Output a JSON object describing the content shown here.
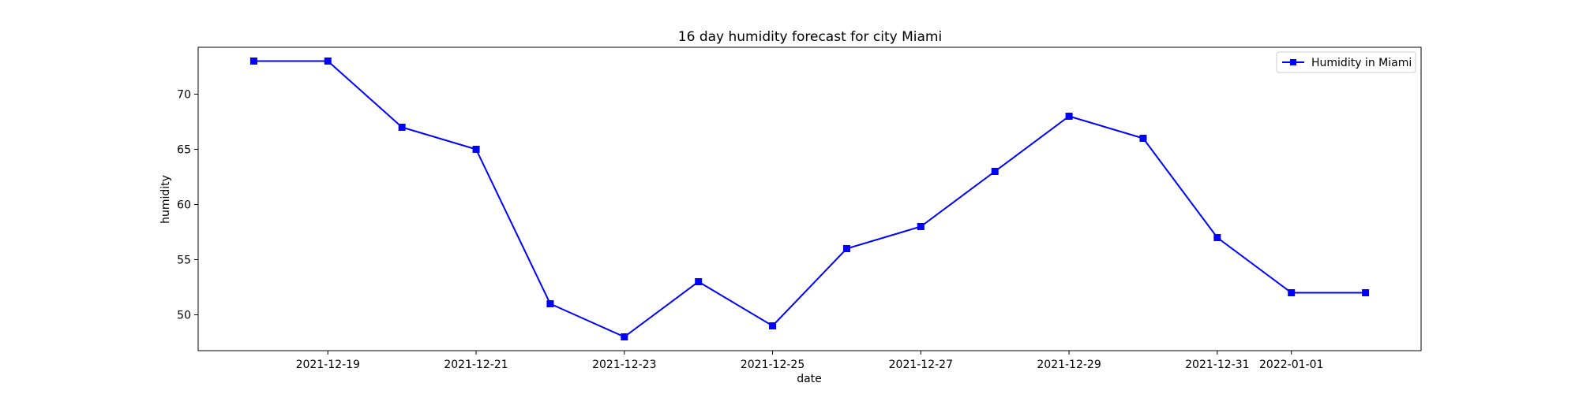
{
  "chart_data": {
    "type": "line",
    "title": "16 day humidity forecast for city Miami",
    "xlabel": "date",
    "ylabel": "humidity",
    "x": [
      "2021-12-18",
      "2021-12-19",
      "2021-12-20",
      "2021-12-21",
      "2021-12-22",
      "2021-12-23",
      "2021-12-24",
      "2021-12-25",
      "2021-12-26",
      "2021-12-27",
      "2021-12-28",
      "2021-12-29",
      "2021-12-30",
      "2021-12-31",
      "2022-01-01",
      "2022-01-02"
    ],
    "series": [
      {
        "name": "Humidity in Miami",
        "color": "#0000ff",
        "marker": "square",
        "values": [
          73,
          73,
          67,
          65,
          51,
          48,
          53,
          49,
          56,
          58,
          63,
          68,
          66,
          57,
          52,
          52
        ]
      }
    ],
    "xlim": [
      "2021-12-17T06:00",
      "2022-01-02T18:00"
    ],
    "ylim": [
      46.75,
      74.25
    ],
    "x_ticks": [
      "2021-12-19",
      "2021-12-21",
      "2021-12-23",
      "2021-12-25",
      "2021-12-27",
      "2021-12-29",
      "2021-12-31",
      "2022-01-01"
    ],
    "y_ticks": [
      50,
      55,
      60,
      65,
      70
    ],
    "grid": false,
    "legend_position": "top-right"
  }
}
